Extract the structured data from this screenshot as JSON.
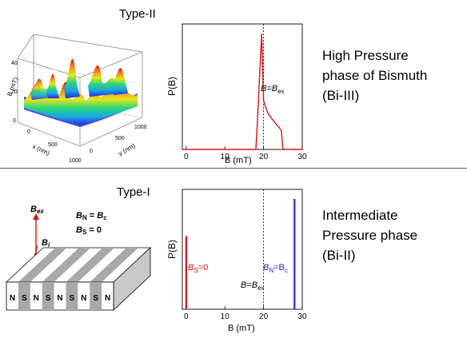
{
  "top": {
    "type_label": "Type-II",
    "side_text": [
      "High Pressure",
      "phase of Bismuth",
      "(Bi-III)"
    ],
    "surface": {
      "x_axis": "x (nm)",
      "y_axis": "y (nm)",
      "z_axis": "B (mT)",
      "x_ticks": [
        "0",
        "500",
        "1000"
      ],
      "y_ticks": [
        "0",
        "500",
        "1000"
      ],
      "z_ticks": [
        "0",
        "20",
        "40"
      ],
      "colormap": [
        "#2b2bd6",
        "#1aa5e6",
        "#2bd67a",
        "#e6e61a",
        "#f08a1a",
        "#e01a1a"
      ]
    }
  },
  "bottom": {
    "type_label": "Type-I",
    "side_text": [
      "Intermediate",
      "Pressure phase",
      "(Bi-II)"
    ],
    "slab": {
      "b_ex": "B",
      "b_ex_sub": "ex",
      "b_i": "B",
      "b_i_sub": "i",
      "eq1_l": "B",
      "eq1_l_sub": "N",
      "eq1_mid": " = ",
      "eq1_r": "B",
      "eq1_r_sub": "c",
      "eq2_l": "B",
      "eq2_l_sub": "S",
      "eq2_r": " = 0",
      "stripe_labels": [
        "N",
        "S",
        "N",
        "S",
        "N",
        "S",
        "N",
        "S",
        "N"
      ]
    }
  },
  "chart_data": [
    {
      "type": "line",
      "ylabel": "P(B)",
      "xlabel": "B (mT)",
      "x_ticks": [
        0,
        10,
        20,
        30
      ],
      "xlim": [
        -1,
        30
      ],
      "marker_x": 20,
      "marker_label": "B=B",
      "marker_sub": "ex",
      "color": "#dd1111",
      "series": [
        {
          "x": [
            -1,
            18,
            18.2,
            19.5,
            20,
            21,
            22,
            23,
            24,
            24.6,
            25,
            30
          ],
          "y": [
            0,
            0,
            0.1,
            1.0,
            0.42,
            0.32,
            0.27,
            0.23,
            0.19,
            0.16,
            0,
            0
          ]
        }
      ]
    },
    {
      "type": "bar",
      "ylabel": "P(B)",
      "xlabel": "B (mT)",
      "x_ticks": [
        0,
        10,
        20,
        30
      ],
      "xlim": [
        -1,
        30
      ],
      "marker_x": 20,
      "marker_label": "B=B",
      "marker_sub": "ex",
      "series": [
        {
          "label_l": "B",
          "label_sub": "S",
          "label_r": "=0",
          "x": 0,
          "value": 0.61,
          "color": "#dd1111"
        },
        {
          "label_l": "B",
          "label_sub": "N",
          "label_mid": "=B",
          "label_sub2": "c",
          "x": 28,
          "value": 0.92,
          "color": "#1a2bd6"
        }
      ]
    }
  ]
}
